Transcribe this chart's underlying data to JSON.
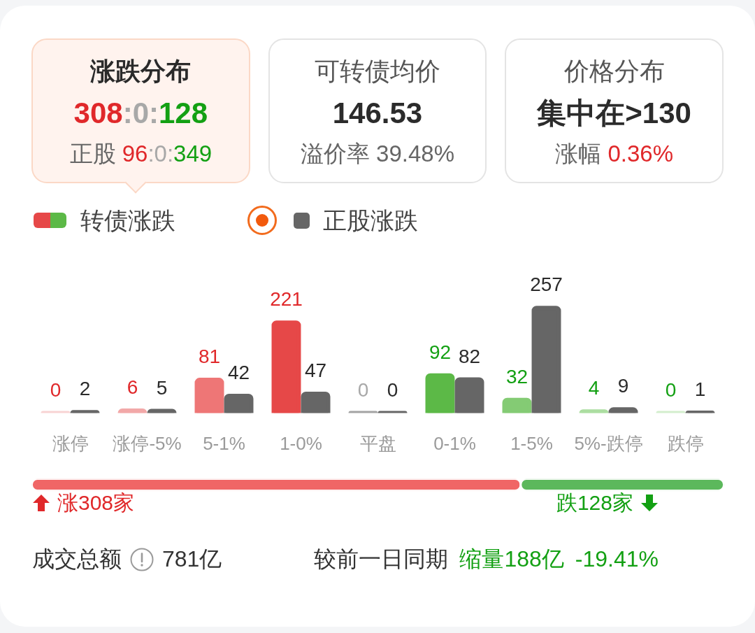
{
  "chart_data": [
    {
      "type": "other",
      "title": "涨跌分布",
      "annotations": [
        "308:0:128",
        "正股",
        "96:0:349"
      ]
    },
    {
      "type": "other",
      "title": "可转债均价",
      "annotations": [
        "146.53",
        "溢价率",
        "39.48%"
      ]
    },
    {
      "type": "other",
      "title": "价格分布",
      "annotations": [
        "集中在>130",
        "涨幅",
        "0.36%"
      ]
    },
    {
      "type": "bar",
      "categories": [
        "涨停",
        "涨停-5%",
        "5-1%",
        "1-0%",
        "平盘",
        "0-1%",
        "1-5%",
        "5%-跌停",
        "跌停"
      ],
      "series": [
        {
          "name": "转债涨跌",
          "colors": [
            "#f8d3d3",
            "#f2a8a8",
            "#ee7676",
            "#e64848",
            "#a3a3a3",
            "#5cb947",
            "#84cb74",
            "#acdea1",
            "#d3eecd"
          ],
          "values": [
            0,
            6,
            81,
            221,
            0,
            92,
            32,
            4,
            0
          ]
        },
        {
          "name": "正股涨跌",
          "color": "#666666",
          "values": [
            2,
            5,
            42,
            47,
            0,
            82,
            257,
            9,
            1
          ]
        }
      ],
      "data_labels": true,
      "legend": "top left"
    },
    {
      "type": "bar",
      "orientation": "horizontal",
      "stacked": true,
      "categories": [
        null
      ],
      "series": [
        {
          "color": "#f06666",
          "values": [
            308
          ],
          "value_labels": [
            "涨308家"
          ]
        },
        {
          "color": "#5cb85c",
          "values": [
            128
          ],
          "value_labels": [
            "跌128家"
          ]
        }
      ]
    },
    {
      "type": "other",
      "annotations": [
        "成交总额",
        "781亿",
        "较前一日同期",
        "缩量188亿",
        "-19.41%"
      ]
    }
  ]
}
